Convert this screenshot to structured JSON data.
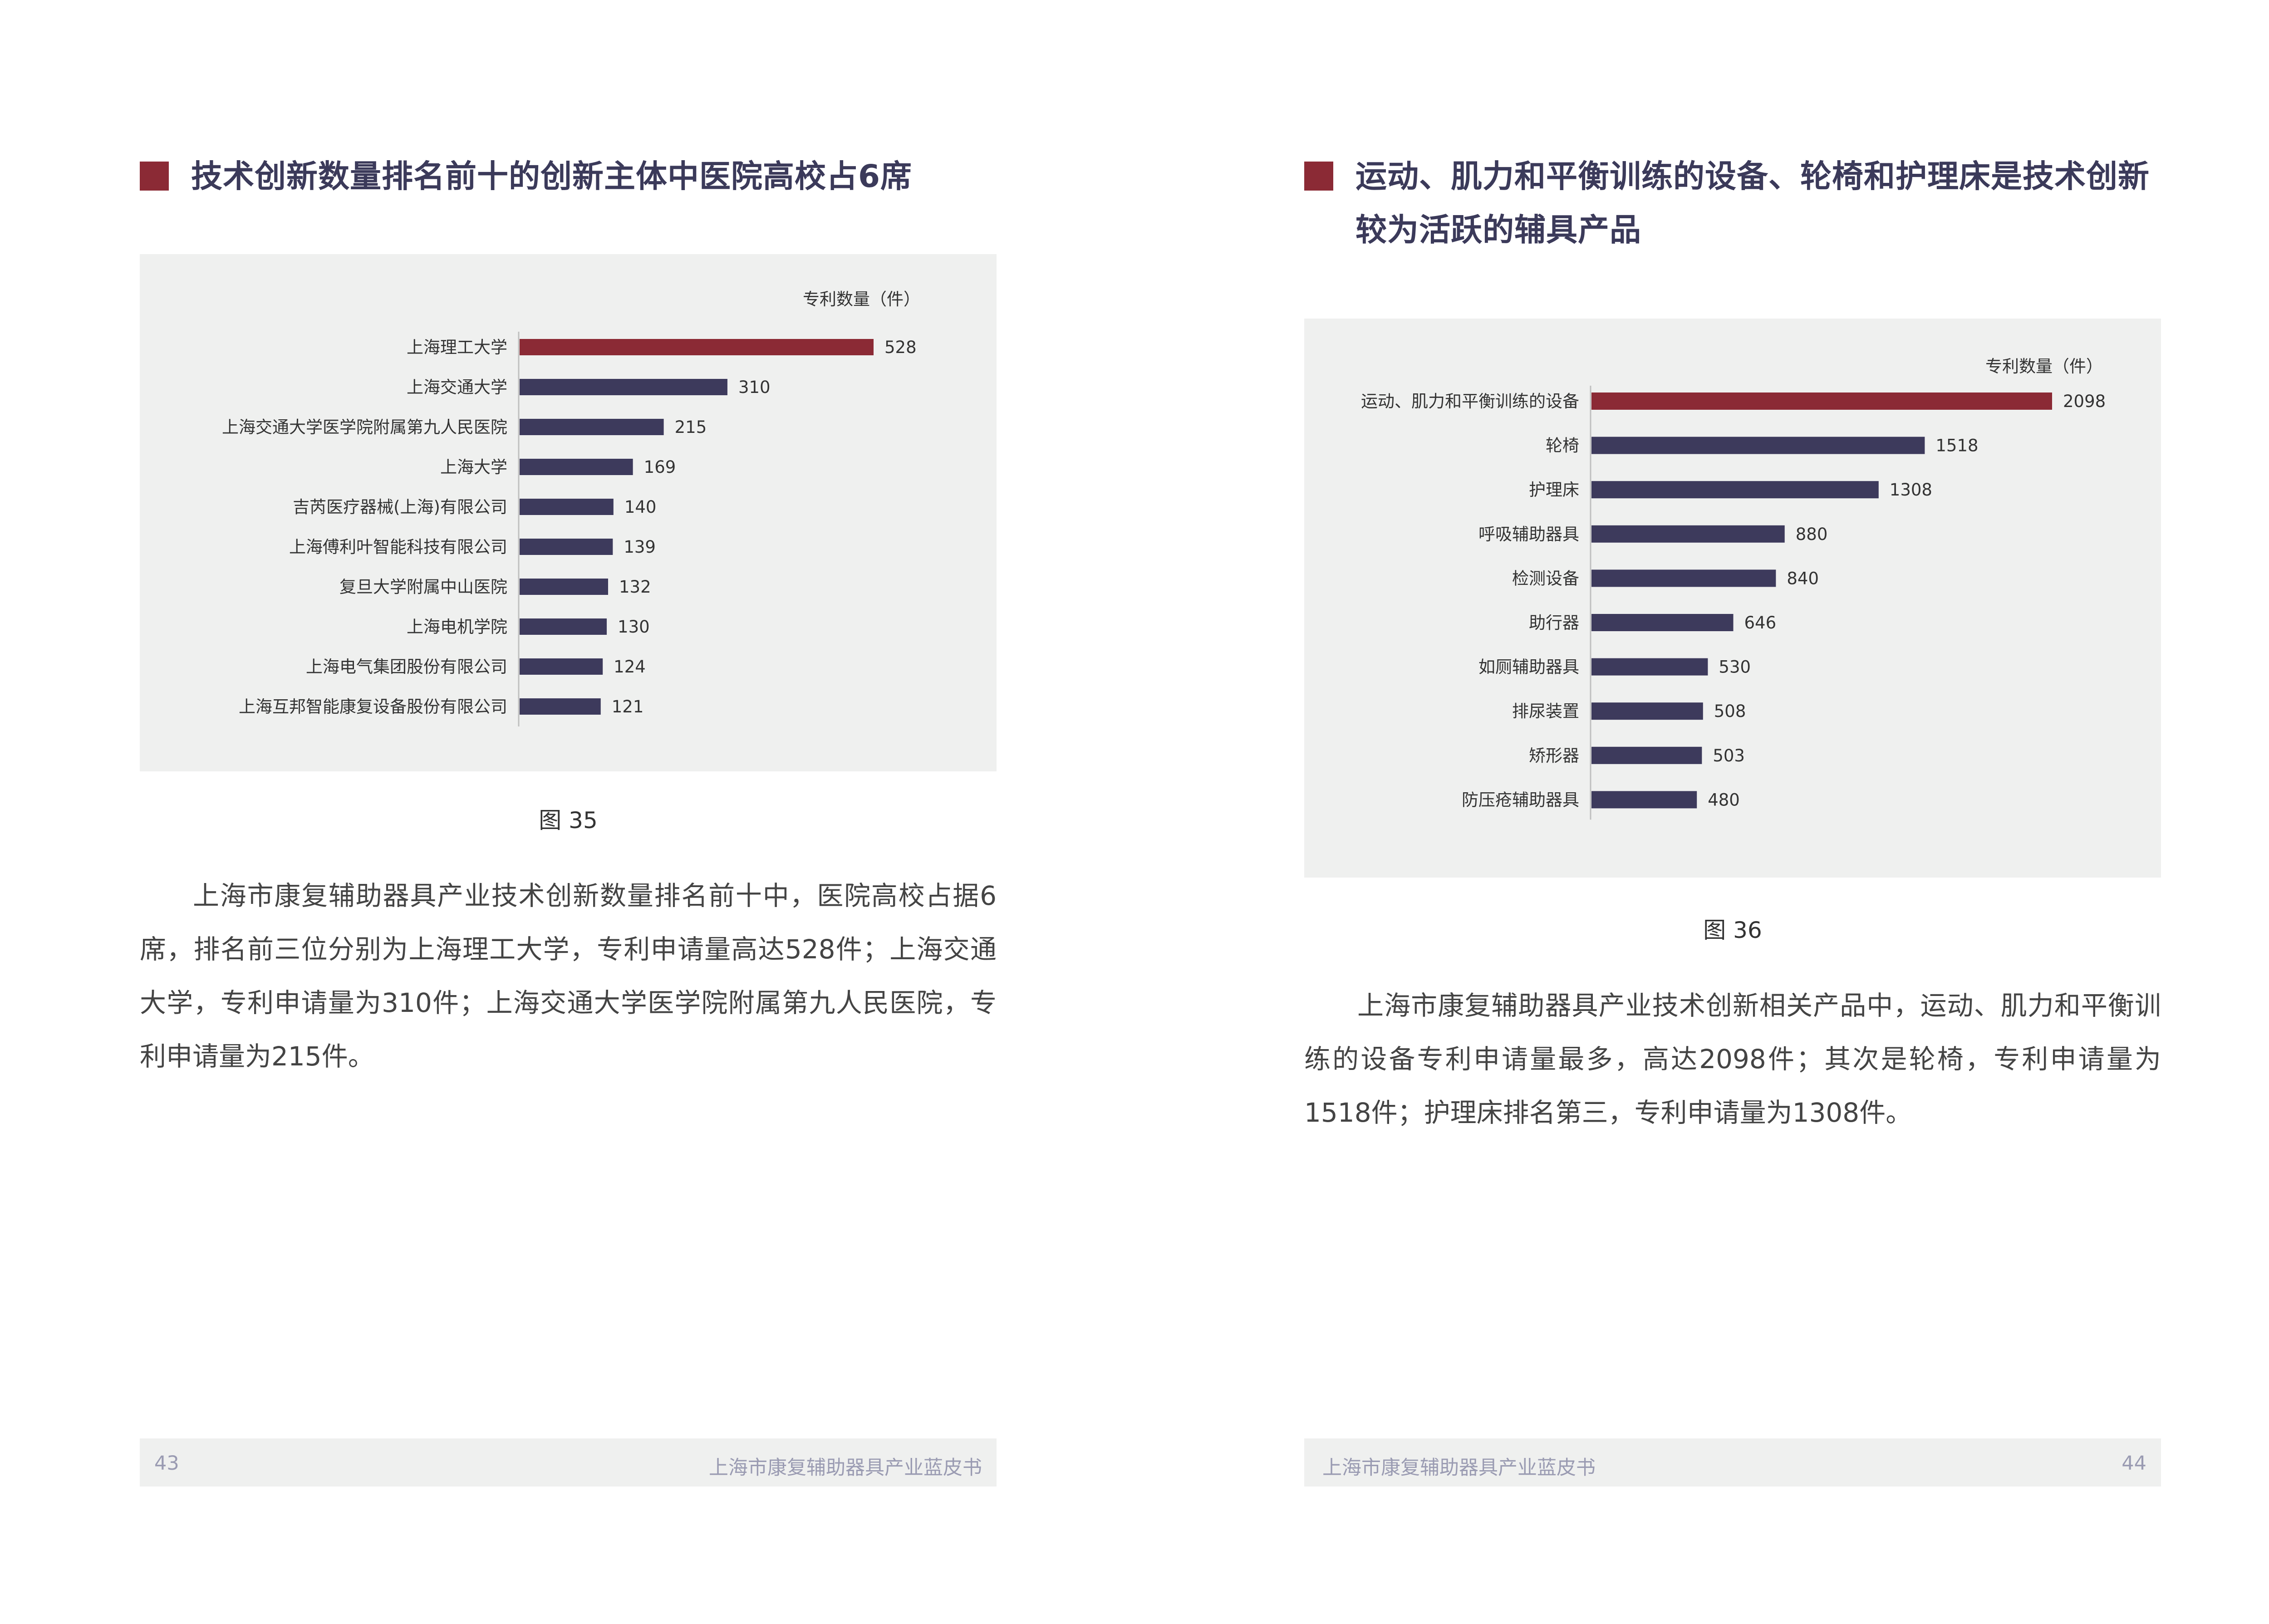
{
  "left_page": {
    "title": "技术创新数量排名前十的创新主体中医院高校占6席",
    "caption": "图 35",
    "paragraph": "上海市康复辅助器具产业技术创新数量排名前十中，医院高校占据6席，排名前三位分别为上海理工大学，专利申请量高达528件；上海交通大学，专利申请量为310件；上海交通大学医学院附属第九人民医院，专利申请量为215件。",
    "footer": {
      "page_number": "43",
      "book_title": "上海市康复辅助器具产业蓝皮书"
    }
  },
  "right_page": {
    "title": "运动、肌力和平衡训练的设备、轮椅和护理床是技术创新较为活跃的辅具产品",
    "caption": "图 36",
    "paragraph": "上海市康复辅助器具产业技术创新相关产品中，运动、肌力和平衡训练的设备专利申请量最多，高达2098件；其次是轮椅，专利申请量为1518件；护理床排名第三，专利申请量为1308件。",
    "footer": {
      "page_number": "44",
      "book_title": "上海市康复辅助器具产业蓝皮书"
    }
  },
  "colors": {
    "highlight": "#8b2a35",
    "bar": "#3d3a5c",
    "panel": "#eff0ef",
    "footer_text": "#9a9bb2"
  },
  "chart_data": [
    {
      "type": "bar",
      "orientation": "horizontal",
      "unit_label": "专利数量（件）",
      "categories": [
        "上海理工大学",
        "上海交通大学",
        "上海交通大学医学院附属第九人民医院",
        "上海大学",
        "吉芮医疗器械(上海)有限公司",
        "上海傅利叶智能科技有限公司",
        "复旦大学附属中山医院",
        "上海电机学院",
        "上海电气集团股份有限公司",
        "上海互邦智能康复设备股份有限公司"
      ],
      "values": [
        528,
        310,
        215,
        169,
        140,
        139,
        132,
        130,
        124,
        121
      ],
      "highlight_index": 0,
      "xlim": [
        0,
        528
      ],
      "grid": false,
      "axis_ticks": false,
      "data_labels": true
    },
    {
      "type": "bar",
      "orientation": "horizontal",
      "unit_label": "专利数量（件）",
      "categories": [
        "运动、肌力和平衡训练的设备",
        "轮椅",
        "护理床",
        "呼吸辅助器具",
        "检测设备",
        "助行器",
        "如厕辅助器具",
        "排尿装置",
        "矫形器",
        "防压疮辅助器具"
      ],
      "values": [
        2098,
        1518,
        1308,
        880,
        840,
        646,
        530,
        508,
        503,
        480
      ],
      "highlight_index": 0,
      "xlim": [
        0,
        2098
      ],
      "grid": false,
      "axis_ticks": false,
      "data_labels": true
    }
  ]
}
